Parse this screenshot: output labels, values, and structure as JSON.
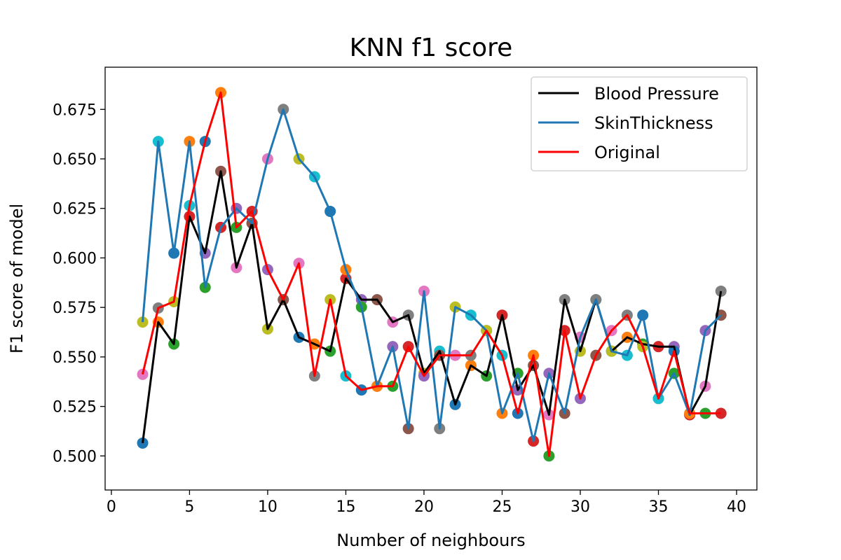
{
  "chart_data": {
    "type": "line",
    "title": "KNN f1 score",
    "xlabel": "Number of neighbours",
    "ylabel": "F1 score of model",
    "xlim": [
      -0.4,
      41.3
    ],
    "ylim": [
      0.4828,
      0.6963
    ],
    "xticks": [
      0,
      5,
      10,
      15,
      20,
      25,
      30,
      35,
      40
    ],
    "xtick_labels": [
      "0",
      "5",
      "10",
      "15",
      "20",
      "25",
      "30",
      "35",
      "40"
    ],
    "yticks": [
      0.5,
      0.525,
      0.55,
      0.575,
      0.6,
      0.625,
      0.65,
      0.675
    ],
    "ytick_labels": [
      "0.500",
      "0.525",
      "0.550",
      "0.575",
      "0.600",
      "0.625",
      "0.650",
      "0.675"
    ],
    "grid": false,
    "legend_position": "top-right",
    "marker_cycle": [
      "#1f77b4",
      "#ff7f0e",
      "#2ca02c",
      "#d62728",
      "#9467bd",
      "#8c564b",
      "#e377c2",
      "#7f7f7f",
      "#bcbd22",
      "#17becf"
    ],
    "x": [
      2,
      3,
      4,
      5,
      6,
      7,
      8,
      9,
      10,
      11,
      12,
      13,
      14,
      15,
      16,
      17,
      18,
      19,
      20,
      21,
      22,
      23,
      24,
      25,
      26,
      27,
      28,
      29,
      30,
      31,
      32,
      33,
      34,
      35,
      36,
      37,
      38,
      39
    ],
    "series": [
      {
        "name": "Blood Pressure",
        "color": "#000000",
        "marker_offset": 0,
        "values": [
          0.5065,
          0.5676,
          0.5565,
          0.6209,
          0.6024,
          0.6437,
          0.5951,
          0.6175,
          0.5641,
          0.5789,
          0.5599,
          0.5565,
          0.5529,
          0.5896,
          0.5789,
          0.5789,
          0.5676,
          0.5711,
          0.5417,
          0.5529,
          0.526,
          0.5457,
          0.5404,
          0.5711,
          0.5333,
          0.5457,
          0.5208,
          0.5789,
          0.5529,
          0.5789,
          0.5529,
          0.5599,
          0.5565,
          0.5552,
          0.5552,
          0.5208,
          0.5352,
          0.5832
        ]
      },
      {
        "name": "SkinThickness",
        "color": "#1f77b4",
        "marker_offset": 8,
        "values": [
          0.5676,
          0.6588,
          0.6024,
          0.6588,
          0.5851,
          0.6154,
          0.625,
          0.6175,
          0.65,
          0.675,
          0.65,
          0.641,
          0.6235,
          0.5941,
          0.5752,
          0.5352,
          0.5552,
          0.5138,
          0.5832,
          0.5138,
          0.5752,
          0.5711,
          0.5633,
          0.5215,
          0.5417,
          0.5075,
          0.5417,
          0.5215,
          0.56,
          0.5789,
          0.5529,
          0.5508,
          0.5711,
          0.529,
          0.5417,
          0.5208,
          0.5633,
          0.5711
        ]
      },
      {
        "name": "Original",
        "color": "#ff0000",
        "marker_offset": 6,
        "values": [
          0.5412,
          0.5747,
          0.5779,
          0.6264,
          0.6588,
          0.6835,
          0.6154,
          0.6235,
          0.5941,
          0.5789,
          0.5973,
          0.5404,
          0.5789,
          0.5404,
          0.5333,
          0.5352,
          0.5352,
          0.5552,
          0.5404,
          0.5508,
          0.5508,
          0.5508,
          0.5633,
          0.5508,
          0.5215,
          0.5508,
          0.5,
          0.5633,
          0.529,
          0.5508,
          0.5633,
          0.5711,
          0.5552,
          0.529,
          0.5529,
          0.5215,
          0.5215,
          0.5215
        ]
      }
    ]
  }
}
